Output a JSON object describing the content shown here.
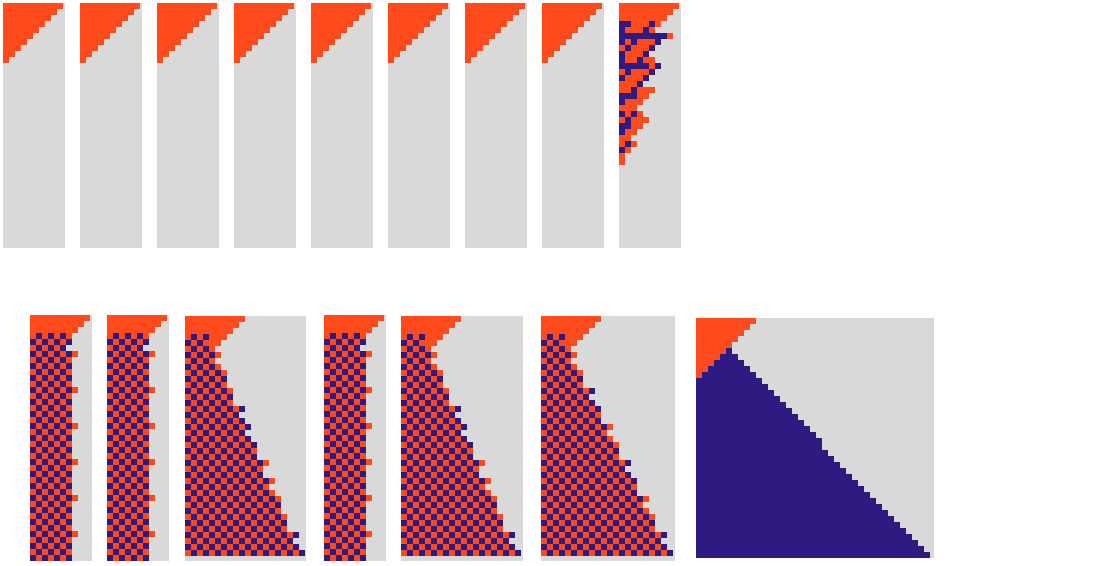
{
  "colors": {
    "background": "#ffffff",
    "empty_cell": "#d9d9d9",
    "orange": "#ff4a1c",
    "purple": "#2e1a80"
  },
  "panels": [
    {
      "name": "top-panel-1",
      "pattern": "triangle-only"
    },
    {
      "name": "top-panel-2",
      "pattern": "triangle-only"
    },
    {
      "name": "top-panel-3",
      "pattern": "triangle-only"
    },
    {
      "name": "top-panel-4",
      "pattern": "triangle-only"
    },
    {
      "name": "top-panel-5",
      "pattern": "triangle-only"
    },
    {
      "name": "top-panel-6",
      "pattern": "triangle-only"
    },
    {
      "name": "top-panel-7",
      "pattern": "triangle-only"
    },
    {
      "name": "top-panel-8",
      "pattern": "triangle-only"
    },
    {
      "name": "top-panel-9",
      "pattern": "short-mixed-wedge"
    },
    {
      "name": "bottom-panel-1",
      "pattern": "checkerboard-band"
    },
    {
      "name": "bottom-panel-2",
      "pattern": "checkerboard-band"
    },
    {
      "name": "bottom-panel-3",
      "pattern": "checkerboard-diagonal"
    },
    {
      "name": "bottom-panel-4",
      "pattern": "checkerboard-band"
    },
    {
      "name": "bottom-panel-5",
      "pattern": "checkerboard-diagonal"
    },
    {
      "name": "bottom-panel-6",
      "pattern": "checkerboard-diagonal"
    },
    {
      "name": "bottom-panel-7",
      "pattern": "solid-purple-diagonal"
    }
  ]
}
